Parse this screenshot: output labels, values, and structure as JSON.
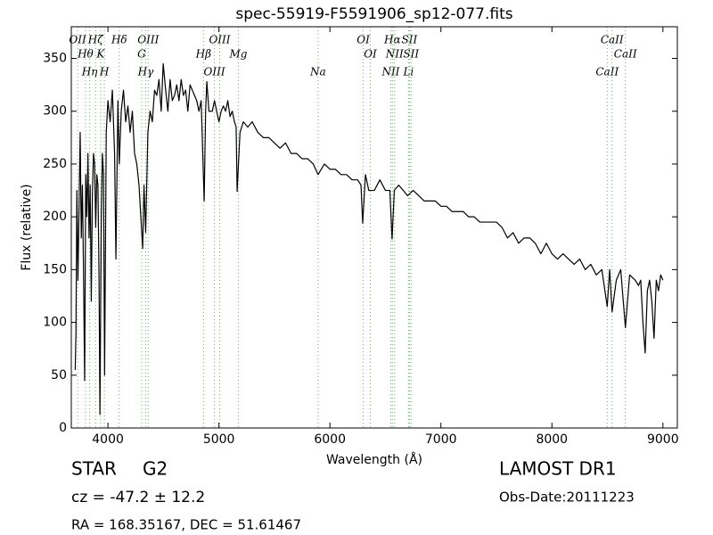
{
  "chart_data": {
    "type": "line",
    "title": "spec-55919-F5591906_sp12-077.fits",
    "x_label": "Wavelength (Å)",
    "y_label": "Flux (relative)",
    "xlim": [
      3670,
      9130
    ],
    "ylim": [
      0,
      380
    ],
    "xticks": [
      4000,
      5000,
      6000,
      7000,
      8000,
      9000
    ],
    "yticks": [
      0,
      50,
      100,
      150,
      200,
      250,
      300,
      350
    ],
    "grid": false,
    "series": [
      {
        "name": "Flux",
        "color": "#000000",
        "x": [
          3705,
          3712,
          3720,
          3730,
          3740,
          3750,
          3760,
          3770,
          3780,
          3790,
          3800,
          3810,
          3820,
          3830,
          3840,
          3850,
          3860,
          3870,
          3880,
          3890,
          3900,
          3910,
          3920,
          3928,
          3940,
          3950,
          3960,
          3970,
          3985,
          4000,
          4020,
          4040,
          4060,
          4072,
          4090,
          4102,
          4120,
          4140,
          4160,
          4180,
          4200,
          4220,
          4240,
          4260,
          4280,
          4313,
          4325,
          4340,
          4360,
          4380,
          4400,
          4420,
          4440,
          4460,
          4480,
          4498,
          4520,
          4540,
          4560,
          4580,
          4600,
          4620,
          4640,
          4660,
          4680,
          4700,
          4720,
          4740,
          4760,
          4780,
          4800,
          4820,
          4840,
          4867,
          4880,
          4891,
          4910,
          4940,
          4960,
          4980,
          5000,
          5020,
          5040,
          5060,
          5080,
          5100,
          5120,
          5140,
          5155,
          5164,
          5190,
          5220,
          5260,
          5300,
          5350,
          5400,
          5450,
          5500,
          5550,
          5600,
          5650,
          5700,
          5750,
          5800,
          5850,
          5893,
          5950,
          6000,
          6050,
          6100,
          6150,
          6200,
          6250,
          6280,
          6295,
          6320,
          6350,
          6400,
          6450,
          6500,
          6540,
          6560,
          6580,
          6620,
          6660,
          6700,
          6750,
          6800,
          6850,
          6900,
          6950,
          7000,
          7050,
          7100,
          7150,
          7200,
          7250,
          7300,
          7350,
          7400,
          7450,
          7500,
          7550,
          7600,
          7650,
          7700,
          7750,
          7800,
          7850,
          7900,
          7950,
          8000,
          8050,
          8100,
          8150,
          8200,
          8250,
          8300,
          8350,
          8400,
          8450,
          8498,
          8520,
          8542,
          8580,
          8620,
          8662,
          8700,
          8750,
          8780,
          8800,
          8820,
          8840,
          8860,
          8880,
          8900,
          8920,
          8940,
          8960,
          8980,
          9000
        ],
        "values": [
          55,
          90,
          225,
          140,
          210,
          280,
          180,
          230,
          150,
          45,
          240,
          200,
          260,
          180,
          230,
          120,
          220,
          260,
          250,
          190,
          240,
          230,
          140,
          13,
          200,
          260,
          240,
          50,
          280,
          310,
          290,
          320,
          260,
          160,
          310,
          250,
          300,
          320,
          290,
          305,
          280,
          300,
          260,
          250,
          230,
          170,
          230,
          185,
          280,
          300,
          290,
          320,
          315,
          330,
          300,
          345,
          320,
          300,
          330,
          310,
          315,
          325,
          310,
          330,
          315,
          320,
          300,
          325,
          320,
          315,
          310,
          300,
          310,
          215,
          300,
          328,
          300,
          300,
          310,
          300,
          290,
          300,
          305,
          300,
          310,
          295,
          300,
          290,
          285,
          224,
          280,
          290,
          285,
          290,
          280,
          275,
          275,
          270,
          265,
          270,
          260,
          260,
          255,
          255,
          250,
          240,
          250,
          245,
          245,
          240,
          240,
          235,
          235,
          230,
          194,
          240,
          225,
          225,
          235,
          225,
          225,
          179,
          225,
          230,
          225,
          220,
          225,
          220,
          215,
          215,
          215,
          210,
          210,
          205,
          205,
          205,
          200,
          200,
          195,
          195,
          195,
          195,
          190,
          180,
          185,
          175,
          180,
          180,
          175,
          165,
          175,
          165,
          160,
          165,
          160,
          155,
          160,
          150,
          155,
          145,
          150,
          115,
          150,
          110,
          140,
          150,
          95,
          145,
          140,
          135,
          140,
          100,
          71,
          130,
          140,
          120,
          85,
          140,
          130,
          145,
          140
        ]
      }
    ],
    "lines_color": "#5cb85c",
    "lines": [
      {
        "label": "OII",
        "wavelength": 3727
      },
      {
        "label": "Hθ",
        "wavelength": 3798
      },
      {
        "label": "Hη",
        "wavelength": 3835
      },
      {
        "label": "Hζ",
        "wavelength": 3889
      },
      {
        "label": "K",
        "wavelength": 3934
      },
      {
        "label": "H",
        "wavelength": 3968
      },
      {
        "label": "Hδ",
        "wavelength": 4102
      },
      {
        "label": "G",
        "wavelength": 4304
      },
      {
        "label": "Hγ",
        "wavelength": 4340
      },
      {
        "label": "OIII",
        "wavelength": 4363
      },
      {
        "label": "Hβ",
        "wavelength": 4861
      },
      {
        "label": "OIII",
        "wavelength": 4959
      },
      {
        "label": "OIII",
        "wavelength": 5007
      },
      {
        "label": "Mg",
        "wavelength": 5175
      },
      {
        "label": "Na",
        "wavelength": 5893
      },
      {
        "label": "OI",
        "wavelength": 6300
      },
      {
        "label": "OI",
        "wavelength": 6364
      },
      {
        "label": "NII",
        "wavelength": 6548
      },
      {
        "label": "Hα",
        "wavelength": 6563
      },
      {
        "label": "NII",
        "wavelength": 6583
      },
      {
        "label": "Li",
        "wavelength": 6708
      },
      {
        "label": "SII",
        "wavelength": 6716
      },
      {
        "label": "SII",
        "wavelength": 6731
      },
      {
        "label": "CaII",
        "wavelength": 8498
      },
      {
        "label": "CaII",
        "wavelength": 8542
      },
      {
        "label": "CaII",
        "wavelength": 8662
      }
    ],
    "class": "STAR",
    "subclass": "G2",
    "redshift": "cz = -47.2 ± 12.2",
    "coords": "RA = 168.35167, DEC = 51.61467",
    "survey": "LAMOST DR1",
    "obs_date": "Obs-Date:20111223"
  }
}
